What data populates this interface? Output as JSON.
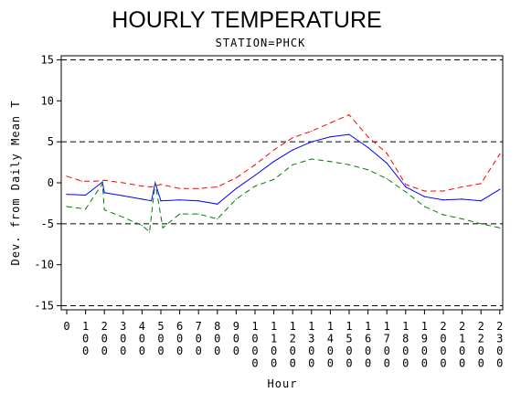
{
  "chart_data": {
    "type": "line",
    "title": "HOURLY TEMPERATURE",
    "subtitle": "STATION=PHCK",
    "xlabel": "Hour",
    "ylabel": "Dev. from Daily Mean T",
    "x": [
      0,
      100,
      200,
      300,
      400,
      500,
      600,
      700,
      800,
      900,
      1000,
      1100,
      1200,
      1300,
      1400,
      1500,
      1600,
      1700,
      1800,
      1900,
      2000,
      2100,
      2200,
      2300
    ],
    "x_tick_labels": [
      "0",
      "100",
      "200",
      "300",
      "400",
      "500",
      "600",
      "700",
      "800",
      "900",
      "1000",
      "1100",
      "1200",
      "1300",
      "1400",
      "1500",
      "1600",
      "1700",
      "1800",
      "1900",
      "2000",
      "2100",
      "2200",
      "2300"
    ],
    "y_ticks": [
      -15,
      -10,
      -5,
      0,
      5,
      10,
      15
    ],
    "ylim": [
      -15.5,
      15.5
    ],
    "reference_lines": [
      -15,
      -5,
      5,
      15
    ],
    "grid": false,
    "series": [
      {
        "color": "#ff0000",
        "dash": "dashed",
        "points": [
          [
            0,
            0.8
          ],
          [
            80,
            0.2
          ],
          [
            150,
            0.2
          ],
          [
            200,
            0.3
          ],
          [
            300,
            0.0
          ],
          [
            400,
            -0.4
          ],
          [
            450,
            -0.5
          ],
          [
            500,
            -0.2
          ],
          [
            600,
            -0.7
          ],
          [
            700,
            -0.7
          ],
          [
            800,
            -0.5
          ],
          [
            900,
            0.6
          ],
          [
            1000,
            2.2
          ],
          [
            1100,
            4.0
          ],
          [
            1200,
            5.5
          ],
          [
            1300,
            6.3
          ],
          [
            1400,
            7.3
          ],
          [
            1500,
            8.3
          ],
          [
            1600,
            5.6
          ],
          [
            1700,
            3.6
          ],
          [
            1800,
            -0.2
          ],
          [
            1900,
            -1.0
          ],
          [
            2000,
            -1.0
          ],
          [
            2100,
            -0.5
          ],
          [
            2200,
            -0.1
          ],
          [
            2300,
            3.5
          ]
        ]
      },
      {
        "color": "#0000ff",
        "dash": "solid",
        "points": [
          [
            0,
            -1.4
          ],
          [
            100,
            -1.5
          ],
          [
            190,
            0.1
          ],
          [
            200,
            -1.2
          ],
          [
            300,
            -1.6
          ],
          [
            400,
            -2.0
          ],
          [
            450,
            -2.2
          ],
          [
            470,
            0.0
          ],
          [
            500,
            -2.2
          ],
          [
            600,
            -2.1
          ],
          [
            700,
            -2.2
          ],
          [
            800,
            -2.6
          ],
          [
            900,
            -0.7
          ],
          [
            1000,
            0.9
          ],
          [
            1100,
            2.6
          ],
          [
            1200,
            4.0
          ],
          [
            1300,
            5.0
          ],
          [
            1400,
            5.6
          ],
          [
            1500,
            5.9
          ],
          [
            1600,
            4.3
          ],
          [
            1700,
            2.4
          ],
          [
            1800,
            -0.5
          ],
          [
            1900,
            -1.7
          ],
          [
            2000,
            -2.1
          ],
          [
            2100,
            -2.0
          ],
          [
            2200,
            -2.2
          ],
          [
            2300,
            -0.8
          ]
        ]
      },
      {
        "color": "#008000",
        "dash": "dashed",
        "points": [
          [
            0,
            -2.9
          ],
          [
            100,
            -3.2
          ],
          [
            190,
            -0.1
          ],
          [
            200,
            -3.3
          ],
          [
            300,
            -4.2
          ],
          [
            400,
            -5.2
          ],
          [
            440,
            -6.0
          ],
          [
            470,
            0.0
          ],
          [
            510,
            -5.5
          ],
          [
            600,
            -3.8
          ],
          [
            700,
            -3.8
          ],
          [
            800,
            -4.4
          ],
          [
            900,
            -2.0
          ],
          [
            1000,
            -0.4
          ],
          [
            1100,
            0.4
          ],
          [
            1200,
            2.2
          ],
          [
            1300,
            2.9
          ],
          [
            1400,
            2.6
          ],
          [
            1500,
            2.2
          ],
          [
            1600,
            1.6
          ],
          [
            1700,
            0.5
          ],
          [
            1800,
            -1.1
          ],
          [
            1900,
            -2.9
          ],
          [
            2000,
            -3.9
          ],
          [
            2100,
            -4.4
          ],
          [
            2200,
            -5.0
          ],
          [
            2300,
            -5.5
          ]
        ]
      }
    ]
  }
}
